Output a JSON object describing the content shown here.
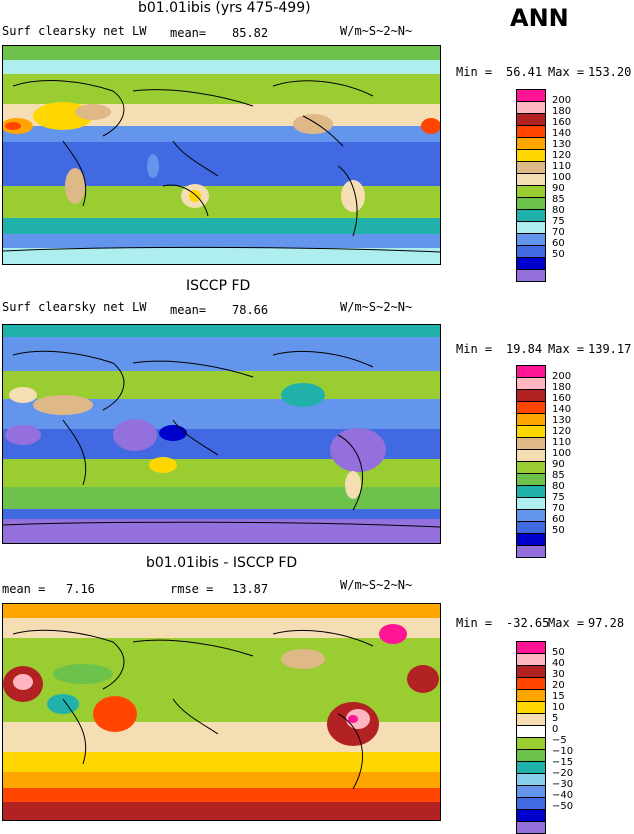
{
  "header": {
    "season": "ANN"
  },
  "panels": [
    {
      "title": "b01.01ibis (yrs 475-499)",
      "left_label": "Surf clearsky net LW",
      "stat1_label": "mean=",
      "stat1_value": "85.82",
      "units": "W/m~S~2~N~",
      "min_label": "Min =",
      "min_value": "56.41",
      "max_label": "Max =",
      "max_value": "153.20",
      "levels": [
        "200",
        "180",
        "160",
        "140",
        "130",
        "120",
        "110",
        "100",
        "90",
        "85",
        "80",
        "75",
        "70",
        "60",
        "50"
      ],
      "colors": [
        "#ff1493",
        "#ffb6c1",
        "#b22222",
        "#ff4500",
        "#ffa500",
        "#ffd700",
        "#deb887",
        "#f5deb3",
        "#9acd32",
        "#6cc24a",
        "#20b2aa",
        "#afeeee",
        "#6495ed",
        "#4169e1",
        "#0000cd",
        "#9370db"
      ]
    },
    {
      "title": "ISCCP FD",
      "left_label": "Surf clearsky net LW",
      "stat1_label": "mean=",
      "stat1_value": "78.66",
      "units": "W/m~S~2~N~",
      "min_label": "Min =",
      "min_value": "19.84",
      "max_label": "Max =",
      "max_value": "139.17",
      "levels": [
        "200",
        "180",
        "160",
        "140",
        "130",
        "120",
        "110",
        "100",
        "90",
        "85",
        "80",
        "75",
        "70",
        "60",
        "50"
      ],
      "colors": [
        "#ff1493",
        "#ffb6c1",
        "#b22222",
        "#ff4500",
        "#ffa500",
        "#ffd700",
        "#deb887",
        "#f5deb3",
        "#9acd32",
        "#6cc24a",
        "#20b2aa",
        "#afeeee",
        "#6495ed",
        "#4169e1",
        "#0000cd",
        "#9370db"
      ]
    },
    {
      "title": "b01.01ibis - ISCCP FD",
      "left_label": "mean =",
      "left_value": "7.16",
      "stat1_label": "rmse =",
      "stat1_value": "13.87",
      "units": "W/m~S~2~N~",
      "min_label": "Min =",
      "min_value": "-32.65",
      "max_label": "Max =",
      "max_value": "97.28",
      "levels": [
        "50",
        "40",
        "30",
        "20",
        "15",
        "10",
        "5",
        "0",
        "−5",
        "−10",
        "−15",
        "−20",
        "−30",
        "−40",
        "−50"
      ],
      "colors": [
        "#ff1493",
        "#ffb6c1",
        "#b22222",
        "#ff4500",
        "#ffa500",
        "#ffd700",
        "#f5deb3",
        "#ffffff",
        "#9acd32",
        "#6cc24a",
        "#20b2aa",
        "#87ceeb",
        "#6495ed",
        "#4169e1",
        "#0000cd",
        "#9370db"
      ]
    }
  ]
}
